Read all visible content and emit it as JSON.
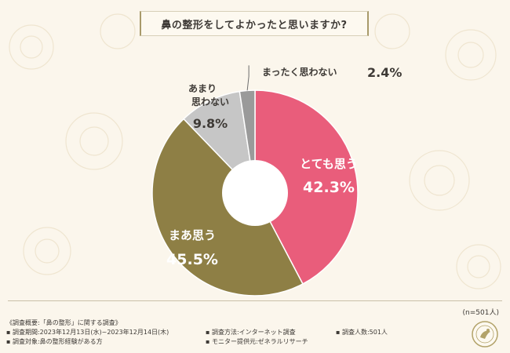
{
  "title": "鼻の整形をしてよかったと思いますか?",
  "sample_size": "(n=501人)",
  "notes": {
    "heading": "《調査概要:「鼻の整形」に関する調査》",
    "period": "▪ 調査期間:2023年12月13日(水)~2023年12月14日(木)",
    "method": "▪ 調査方法:インターネット調査",
    "respondents": "▪ 調査人数:501人",
    "target": "▪ 調査対象:鼻の整形経験がある方",
    "provider": "▪ モニター提供元:ゼネラルリサーチ"
  },
  "chart_data": {
    "type": "pie",
    "title": "鼻の整形をしてよかったと思いますか?",
    "slices": [
      {
        "label": "とても思う",
        "value": 42.3,
        "display": "42.3%",
        "color": "#e95d7b"
      },
      {
        "label": "まあ思う",
        "value": 45.5,
        "display": "45.5%",
        "color": "#8e7f45"
      },
      {
        "label": "あまり思わない",
        "label_lines": [
          "あまり",
          "思わない"
        ],
        "value": 9.8,
        "display": "9.8%",
        "color": "#c6c6c6"
      },
      {
        "label": "まったく思わない",
        "value": 2.4,
        "display": "2.4%",
        "color": "#9a9a9a"
      }
    ]
  }
}
